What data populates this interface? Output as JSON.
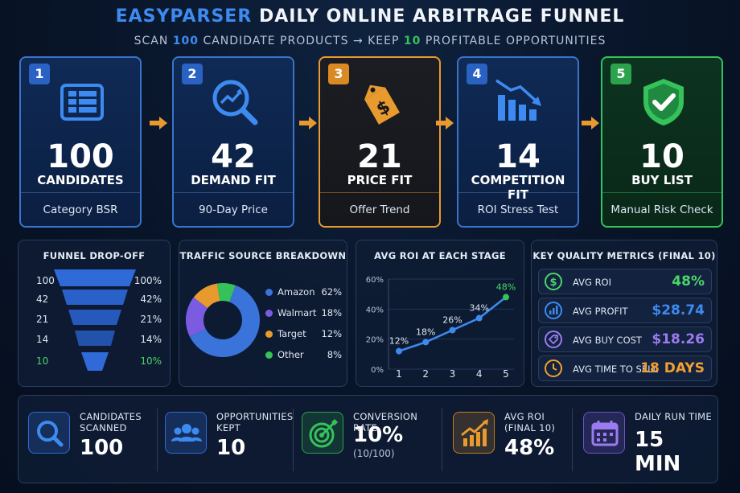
{
  "header": {
    "title_brand": "EASYPARSER",
    "title_rest": "DAILY ONLINE ARBITRAGE FUNNEL",
    "subtitle_a": "SCAN",
    "subtitle_n1": "100",
    "subtitle_b": "CANDIDATE PRODUCTS → KEEP",
    "subtitle_n2": "10",
    "subtitle_c": "PROFITABLE OPPORTUNITIES"
  },
  "stages": [
    {
      "num": "1",
      "value": "100",
      "label": "CANDIDATES",
      "foot": "Category BSR",
      "icon": "table-icon"
    },
    {
      "num": "2",
      "value": "42",
      "label": "DEMAND FIT",
      "foot": "90-Day Price",
      "icon": "trend-search-icon"
    },
    {
      "num": "3",
      "value": "21",
      "label": "PRICE FIT",
      "foot": "Offer Trend",
      "icon": "price-tag-icon"
    },
    {
      "num": "4",
      "value": "14",
      "label": "COMPETITION FIT",
      "foot": "ROI Stress Test",
      "icon": "declining-bars-icon"
    },
    {
      "num": "5",
      "value": "10",
      "label": "BUY LIST",
      "foot": "Manual Risk Check",
      "icon": "shield-check-icon"
    }
  ],
  "funnel": {
    "title": "FUNNEL DROP-OFF",
    "rows": [
      {
        "left": "100",
        "right": "100%",
        "fraction": 1.0
      },
      {
        "left": "42",
        "right": "42%",
        "fraction": 0.42
      },
      {
        "left": "21",
        "right": "21%",
        "fraction": 0.21
      },
      {
        "left": "14",
        "right": "14%",
        "fraction": 0.14
      },
      {
        "left": "10",
        "right": "10%",
        "fraction": 0.1
      }
    ]
  },
  "traffic": {
    "title": "TRAFFIC SOURCE BREAKDOWN",
    "items": [
      {
        "name": "Amazon",
        "pct": "62%",
        "value": 62,
        "color": "#3a73d9"
      },
      {
        "name": "Walmart",
        "pct": "18%",
        "value": 18,
        "color": "#7b5ce0"
      },
      {
        "name": "Target",
        "pct": "12%",
        "value": 12,
        "color": "#e89a2f"
      },
      {
        "name": "Other",
        "pct": "8%",
        "value": 8,
        "color": "#35c25a"
      }
    ]
  },
  "chart_data": {
    "type": "line",
    "title": "AVG ROI AT EACH STAGE",
    "x": [
      1,
      2,
      3,
      4,
      5
    ],
    "series": [
      {
        "values": [
          12,
          18,
          26,
          34,
          48
        ]
      }
    ],
    "point_labels": [
      "12%",
      "18%",
      "26%",
      "34%",
      "48%"
    ],
    "ytick_labels": [
      "0%",
      "20%",
      "40%",
      "60%"
    ],
    "ylim": [
      0,
      60
    ],
    "grid": true
  },
  "metrics": {
    "title": "KEY QUALITY METRICS (FINAL 10)",
    "items": [
      {
        "label": "AVG ROI",
        "value": "48%",
        "color": "#4bd46b",
        "icon": "dollar-icon"
      },
      {
        "label": "AVG PROFIT",
        "value": "$28.74",
        "color": "#3d8bf0",
        "icon": "bar-chart-icon"
      },
      {
        "label": "AVG BUY COST",
        "value": "$18.26",
        "color": "#9b7cf0",
        "icon": "tag-icon"
      },
      {
        "label": "AVG TIME TO SELL",
        "value": "18 DAYS",
        "color": "#f0a030",
        "icon": "clock-icon"
      }
    ]
  },
  "kpis": [
    {
      "label1": "CANDIDATES",
      "label2": "SCANNED",
      "value": "100",
      "sub": "",
      "icon": "search-icon",
      "color": "#3d8bf0"
    },
    {
      "label1": "OPPORTUNITIES",
      "label2": "KEPT",
      "value": "10",
      "sub": "",
      "icon": "people-icon",
      "color": "#3d8bf0"
    },
    {
      "label1": "CONVERSION RATE",
      "label2": "",
      "value": "10%",
      "sub": "(10/100)",
      "icon": "target-icon",
      "color": "#35c25a"
    },
    {
      "label1": "AVG ROI",
      "label2": "(FINAL 10)",
      "value": "48%",
      "sub": "",
      "icon": "growth-chart-icon",
      "color": "#e89a2f"
    },
    {
      "label1": "DAILY RUN TIME",
      "label2": "",
      "value": "15 MIN",
      "sub": "",
      "icon": "calendar-icon",
      "color": "#7b5ce0"
    }
  ]
}
